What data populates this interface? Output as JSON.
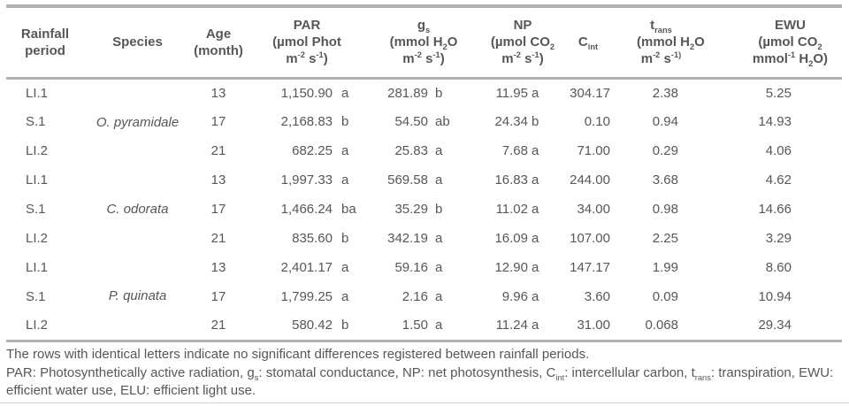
{
  "table": {
    "headers": {
      "period": "Rainfall\nperiod",
      "species": "Species",
      "age": "Age\n(month)",
      "par": "PAR\n(µmol Phot\nm^{-2} s^{-1})",
      "gs": "g_{s}\n(mmol H_{2}O\nm^{-2} s^{-1})",
      "np": "NP\n(µmol CO_{2}\nm^{-2} s^{-1})",
      "cint": "C_{int}",
      "trans": "t_{rans}\n(mmol H_{2}O\nm^{-2} s^{-1)}",
      "ewu": "EWU\n(µmol CO_{2}\nmmol^{-1} H_{2}O)"
    },
    "columns": [
      {
        "key": "period",
        "cls": "c-period",
        "name": "period-cell"
      },
      {
        "key": "species",
        "cls": "c-species",
        "name": "species-cell"
      },
      {
        "key": "age",
        "cls": "c-age",
        "name": "age-cell"
      },
      {
        "key": "par",
        "cls": "c-num",
        "name": "par-value"
      },
      {
        "key": "par_letter",
        "cls": "c-letter cl-par",
        "name": "par-letter"
      },
      {
        "key": "gs",
        "cls": "c-num",
        "name": "gs-value"
      },
      {
        "key": "gs_letter",
        "cls": "c-letter cl-gs",
        "name": "gs-letter"
      },
      {
        "key": "np",
        "cls": "c-num",
        "name": "np-value"
      },
      {
        "key": "np_letter",
        "cls": "c-letter cl-np",
        "name": "np-letter"
      },
      {
        "key": "cint",
        "cls": "c-num c-cint",
        "name": "cint-value"
      },
      {
        "key": "trans",
        "cls": "c-num c-trans",
        "name": "trans-value"
      },
      {
        "key": "ewu",
        "cls": "c-num c-ewu",
        "name": "ewu-value"
      }
    ],
    "rows": [
      {
        "period": "LI.1",
        "species": "O. pyramidale",
        "age": "13",
        "par": "1,150.90",
        "par_letter": "a",
        "gs": "281.89",
        "gs_letter": "b",
        "np": "11.95",
        "np_letter": "a",
        "cint": "304.17",
        "trans": "2.38",
        "ewu": "5.25"
      },
      {
        "period": "S.1",
        "species": "",
        "age": "17",
        "par": "2,168.83",
        "par_letter": "b",
        "gs": "54.50",
        "gs_letter": "ab",
        "np": "24.34",
        "np_letter": "b",
        "cint": "0.10",
        "trans": "0.94",
        "ewu": "14.93"
      },
      {
        "period": "LI.2",
        "species": "",
        "age": "21",
        "par": "682.25",
        "par_letter": "a",
        "gs": "25.83",
        "gs_letter": "a",
        "np": "7.68",
        "np_letter": "a",
        "cint": "71.00",
        "trans": "0.29",
        "ewu": "4.06"
      },
      {
        "period": "LI.1",
        "species": "C. odorata",
        "age": "13",
        "par": "1,997.33",
        "par_letter": "a",
        "gs": "569.58",
        "gs_letter": "a",
        "np": "16.83",
        "np_letter": "a",
        "cint": "244.00",
        "trans": "3.68",
        "ewu": "4.62"
      },
      {
        "period": "S.1",
        "species": "",
        "age": "17",
        "par": "1,466.24",
        "par_letter": "ba",
        "gs": "35.29",
        "gs_letter": "b",
        "np": "11.02",
        "np_letter": "a",
        "cint": "34.00",
        "trans": "0.98",
        "ewu": "14.66"
      },
      {
        "period": "LI.2",
        "species": "",
        "age": "21",
        "par": "835.60",
        "par_letter": "b",
        "gs": "342.19",
        "gs_letter": "a",
        "np": "16.09",
        "np_letter": "a",
        "cint": "107.00",
        "trans": "2.25",
        "ewu": "3.29"
      },
      {
        "period": "LI.1",
        "species": "P. quinata",
        "age": "13",
        "par": "2,401.17",
        "par_letter": "a",
        "gs": "59.16",
        "gs_letter": "a",
        "np": "12.90",
        "np_letter": "a",
        "cint": "147.17",
        "trans": "1.99",
        "ewu": "8.60"
      },
      {
        "period": "S.1",
        "species": "",
        "age": "17",
        "par": "1,799.25",
        "par_letter": "a",
        "gs": "2.16",
        "gs_letter": "a",
        "np": "9.96",
        "np_letter": "a",
        "cint": "3.60",
        "trans": "0.09",
        "ewu": "10.94"
      },
      {
        "period": "LI.2",
        "species": "",
        "age": "21",
        "par": "580.42",
        "par_letter": "b",
        "gs": "1.50",
        "gs_letter": "a",
        "np": "11.24",
        "np_letter": "a",
        "cint": "31.00",
        "trans": "0.068",
        "ewu": "29.34"
      }
    ],
    "species_rowspan": 3
  },
  "footnotes": {
    "note": "The rows with identical letters indicate no significant differences registered between rainfall periods.",
    "abbreviations": "PAR: Photosynthetically active radiation, g_{s}: stomatal conductance, NP: net photosynthesis, C_{int}: intercellular carbon, t_{rans}: transpiration, EWU: efficient water use, ELU: efficient light use."
  },
  "colors": {
    "rule": "#b0b2b4",
    "text": "#55575a"
  }
}
